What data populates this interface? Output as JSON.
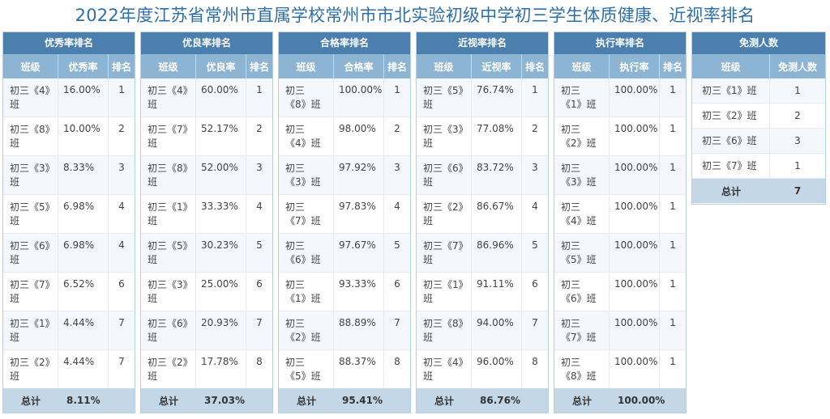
{
  "title": "2022年度江苏省常州市直属学校常州市市北实验初级中学初三学生体质健康、近视率排名",
  "col_class": "班级",
  "col_rank": "排名",
  "total_label": "总计",
  "panels": [
    {
      "header": "优秀率排名",
      "value_col": "优秀率",
      "total": "8.11%",
      "rows": [
        {
          "c1": "初三《4》",
          "c2": "班",
          "v": "16.00%",
          "r": "1"
        },
        {
          "c1": "初三《8》",
          "c2": "班",
          "v": "10.00%",
          "r": "2"
        },
        {
          "c1": "初三《3》",
          "c2": "班",
          "v": "8.33%",
          "r": "3"
        },
        {
          "c1": "初三《5》",
          "c2": "班",
          "v": "6.98%",
          "r": "4"
        },
        {
          "c1": "初三《6》",
          "c2": "班",
          "v": "6.98%",
          "r": "4"
        },
        {
          "c1": "初三《7》",
          "c2": "班",
          "v": "6.52%",
          "r": "6"
        },
        {
          "c1": "初三《1》",
          "c2": "班",
          "v": "4.44%",
          "r": "7"
        },
        {
          "c1": "初三《2》",
          "c2": "班",
          "v": "4.44%",
          "r": "7"
        }
      ]
    },
    {
      "header": "优良率排名",
      "value_col": "优良率",
      "total": "37.03%",
      "rows": [
        {
          "c1": "初三《4》",
          "c2": "班",
          "v": "60.00%",
          "r": "1"
        },
        {
          "c1": "初三《7》",
          "c2": "班",
          "v": "52.17%",
          "r": "2"
        },
        {
          "c1": "初三《8》",
          "c2": "班",
          "v": "52.00%",
          "r": "3"
        },
        {
          "c1": "初三《1》",
          "c2": "班",
          "v": "33.33%",
          "r": "4"
        },
        {
          "c1": "初三《5》",
          "c2": "班",
          "v": "30.23%",
          "r": "5"
        },
        {
          "c1": "初三《3》",
          "c2": "班",
          "v": "25.00%",
          "r": "6"
        },
        {
          "c1": "初三《6》",
          "c2": "班",
          "v": "20.93%",
          "r": "7"
        },
        {
          "c1": "初三《2》",
          "c2": "班",
          "v": "17.78%",
          "r": "8"
        }
      ]
    },
    {
      "header": "合格率排名",
      "value_col": "合格率",
      "total": "95.41%",
      "rows": [
        {
          "c1": "初三",
          "c2": "《8》班",
          "v": "100.00%",
          "r": "1"
        },
        {
          "c1": "初三",
          "c2": "《4》班",
          "v": "98.00%",
          "r": "2"
        },
        {
          "c1": "初三",
          "c2": "《3》班",
          "v": "97.92%",
          "r": "3"
        },
        {
          "c1": "初三",
          "c2": "《7》班",
          "v": "97.83%",
          "r": "4"
        },
        {
          "c1": "初三",
          "c2": "《6》班",
          "v": "97.67%",
          "r": "5"
        },
        {
          "c1": "初三",
          "c2": "《1》班",
          "v": "93.33%",
          "r": "6"
        },
        {
          "c1": "初三",
          "c2": "《2》班",
          "v": "88.89%",
          "r": "7"
        },
        {
          "c1": "初三",
          "c2": "《5》班",
          "v": "88.37%",
          "r": "8"
        }
      ]
    },
    {
      "header": "近视率排名",
      "value_col": "近视率",
      "total": "86.76%",
      "rows": [
        {
          "c1": "初三《5》",
          "c2": "班",
          "v": "76.74%",
          "r": "1"
        },
        {
          "c1": "初三《3》",
          "c2": "班",
          "v": "77.08%",
          "r": "2"
        },
        {
          "c1": "初三《6》",
          "c2": "班",
          "v": "83.72%",
          "r": "3"
        },
        {
          "c1": "初三《2》",
          "c2": "班",
          "v": "86.67%",
          "r": "4"
        },
        {
          "c1": "初三《7》",
          "c2": "班",
          "v": "86.96%",
          "r": "5"
        },
        {
          "c1": "初三《1》",
          "c2": "班",
          "v": "91.11%",
          "r": "6"
        },
        {
          "c1": "初三《8》",
          "c2": "班",
          "v": "94.00%",
          "r": "7"
        },
        {
          "c1": "初三《4》",
          "c2": "班",
          "v": "96.00%",
          "r": "8"
        }
      ]
    },
    {
      "header": "执行率排名",
      "value_col": "执行率",
      "total": "100.00%",
      "rows": [
        {
          "c1": "初三",
          "c2": "《1》班",
          "v": "100.00%",
          "r": "1"
        },
        {
          "c1": "初三",
          "c2": "《2》班",
          "v": "100.00%",
          "r": "1"
        },
        {
          "c1": "初三",
          "c2": "《3》班",
          "v": "100.00%",
          "r": "1"
        },
        {
          "c1": "初三",
          "c2": "《4》班",
          "v": "100.00%",
          "r": "1"
        },
        {
          "c1": "初三",
          "c2": "《5》班",
          "v": "100.00%",
          "r": "1"
        },
        {
          "c1": "初三",
          "c2": "《6》班",
          "v": "100.00%",
          "r": "1"
        },
        {
          "c1": "初三",
          "c2": "《7》班",
          "v": "100.00%",
          "r": "1"
        },
        {
          "c1": "初三",
          "c2": "《8》班",
          "v": "100.00%",
          "r": "1"
        }
      ]
    }
  ],
  "exempt": {
    "header": "免测人数",
    "value_col": "免测人数",
    "total": "7",
    "rows": [
      {
        "c": "初三《1》班",
        "n": "1"
      },
      {
        "c": "初三《2》班",
        "n": "2"
      },
      {
        "c": "初三《6》班",
        "n": "3"
      },
      {
        "c": "初三《7》班",
        "n": "1"
      }
    ]
  }
}
